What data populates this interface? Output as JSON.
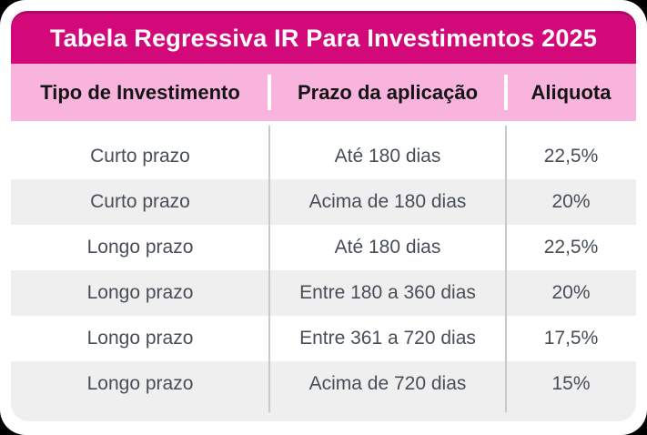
{
  "page": {
    "background_color": "#000000",
    "card_background": "#ffffff"
  },
  "title_bar": {
    "label": "Tabela Regressiva IR Para Investimentos 2025",
    "background_color": "#d30879",
    "top_edge_color": "#aa0a60",
    "text_color": "#ffffff"
  },
  "table": {
    "header": {
      "background_color": "#f9b4de",
      "text_color": "#141414",
      "columns": [
        "Tipo de Investimento",
        "Prazo da aplicação",
        "Aliquota"
      ]
    },
    "rows": [
      {
        "tipo": "Curto prazo",
        "prazo": "Até 180 dias",
        "aliquota": "22,5%"
      },
      {
        "tipo": "Curto prazo",
        "prazo": "Acima de 180 dias",
        "aliquota": "20%"
      },
      {
        "tipo": "Longo prazo",
        "prazo": "Até 180 dias",
        "aliquota": "22,5%"
      },
      {
        "tipo": "Longo prazo",
        "prazo": "Entre 180 a 360 dias",
        "aliquota": "20%"
      },
      {
        "tipo": "Longo prazo",
        "prazo": "Entre 361 a 720 dias",
        "aliquota": "17,5%"
      },
      {
        "tipo": "Longo prazo",
        "prazo": "Acima de 720 dias",
        "aliquota": "15%"
      }
    ],
    "stripe_color": "#efefef",
    "divider_color": "#c9c9c9",
    "body_text_color": "#474e57"
  }
}
